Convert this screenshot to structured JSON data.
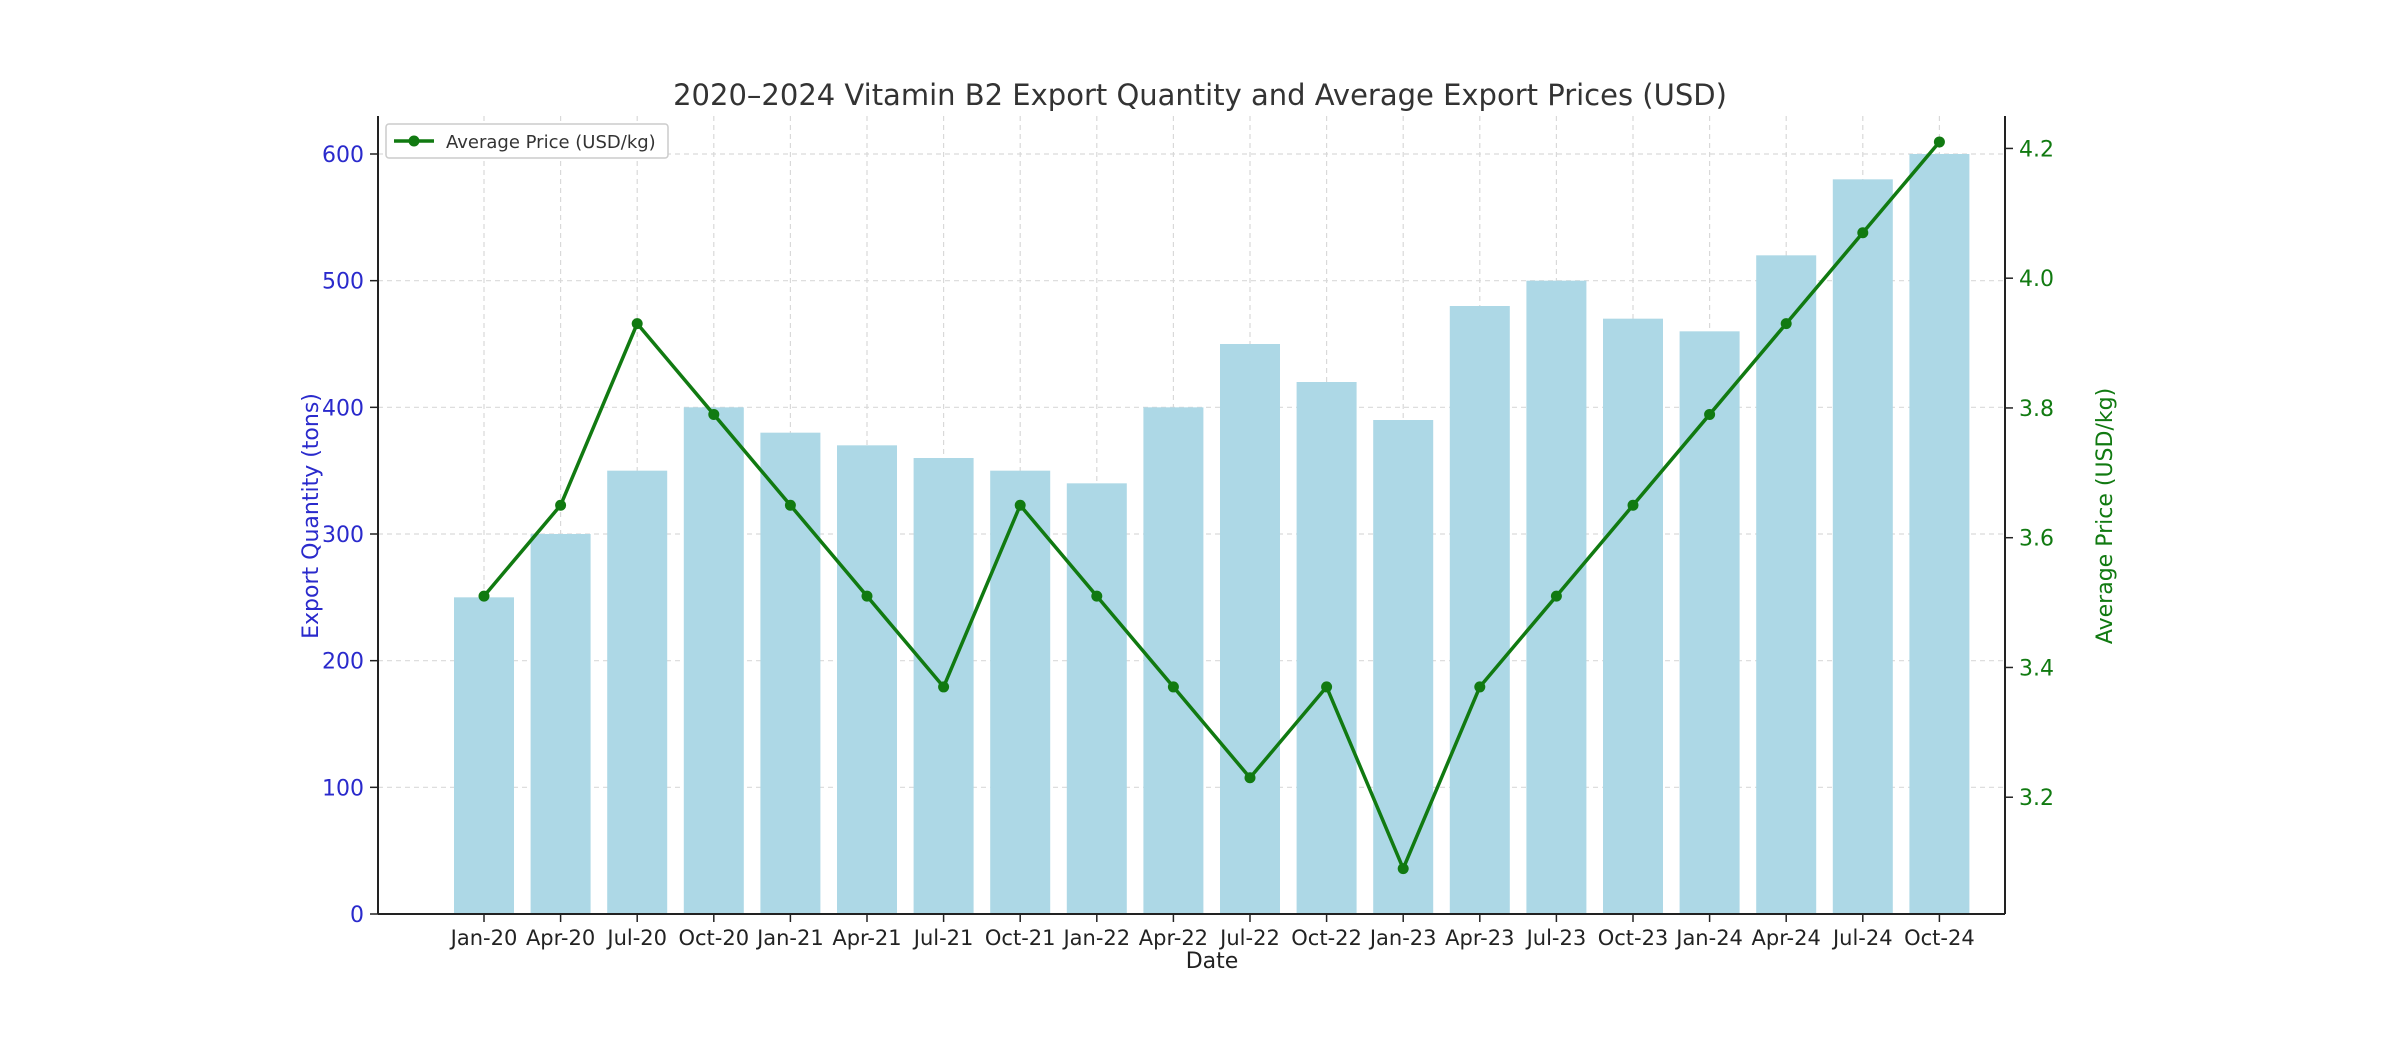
{
  "chart_data": {
    "type": "bar+line",
    "title": "2020–2024 Vitamin B2 Export Quantity and Average Export Prices (USD)",
    "xlabel": "Date",
    "categories": [
      "Jan-20",
      "Apr-20",
      "Jul-20",
      "Oct-20",
      "Jan-21",
      "Apr-21",
      "Jul-21",
      "Oct-21",
      "Jan-22",
      "Apr-22",
      "Jul-22",
      "Oct-22",
      "Jan-23",
      "Apr-23",
      "Jul-23",
      "Oct-23",
      "Jan-24",
      "Apr-24",
      "Jul-24",
      "Oct-24"
    ],
    "bar_series": {
      "name": "Export Quantity (tons)",
      "axis": "left",
      "color": "#add8e6",
      "values": [
        250,
        300,
        350,
        400,
        380,
        370,
        360,
        350,
        340,
        400,
        450,
        420,
        390,
        480,
        500,
        470,
        460,
        520,
        580,
        600
      ]
    },
    "line_series": {
      "name": "Average Price (USD/kg)",
      "axis": "right",
      "color": "#117a11",
      "marker": "circle",
      "values": [
        3.51,
        3.65,
        3.93,
        3.79,
        3.65,
        3.51,
        3.37,
        3.65,
        3.51,
        3.37,
        3.23,
        3.37,
        3.09,
        3.37,
        3.51,
        3.65,
        3.79,
        3.93,
        4.07,
        4.21
      ]
    },
    "left_axis": {
      "label": "Export Quantity (tons)",
      "color": "#2a2acc",
      "ylim": [
        0,
        630
      ],
      "ticks": [
        0,
        100,
        200,
        300,
        400,
        500,
        600
      ],
      "tick_labels": [
        "0",
        "100",
        "200",
        "300",
        "400",
        "500",
        "600"
      ]
    },
    "right_axis": {
      "label": "Average Price (USD/kg)",
      "color": "#117a11",
      "ylim": [
        3.02,
        4.25
      ],
      "ticks": [
        3.2,
        3.4,
        3.6,
        3.8,
        4.0,
        4.2
      ],
      "tick_labels": [
        "3.2",
        "3.4",
        "3.6",
        "3.8",
        "4.0",
        "4.2"
      ]
    },
    "legend": {
      "position": "top-left",
      "entries": [
        "Average Price (USD/kg)"
      ]
    },
    "grid": true
  }
}
